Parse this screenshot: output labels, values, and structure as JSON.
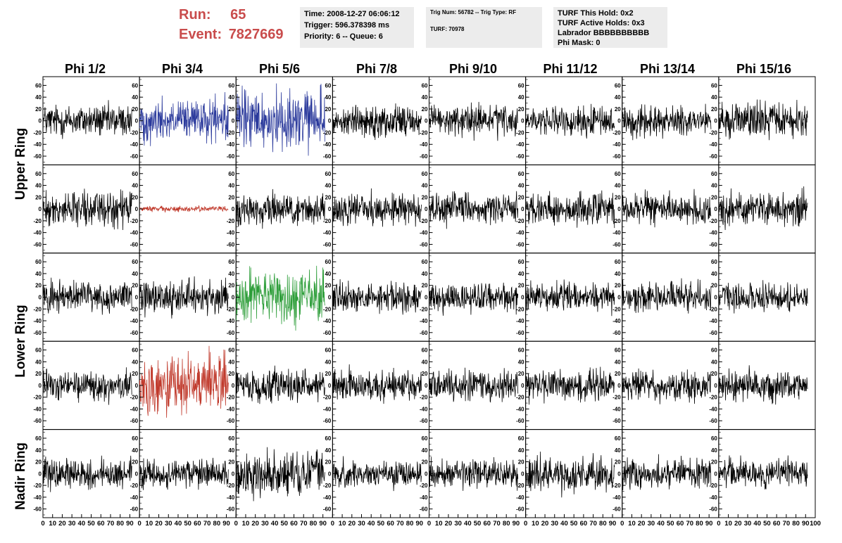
{
  "header": {
    "run_label": "Run:",
    "run_value": "65",
    "event_label": "Event:",
    "event_value": "7827669",
    "accent_color": "#c94c4c"
  },
  "info_boxes": [
    {
      "lines": [
        "Time: 2008-12-27 06:06:12",
        "Trigger: 596.378398 ms",
        "Priority: 6 -- Queue: 6"
      ]
    },
    {
      "lines": [
        "Trig Num: 56782 -- Trig Type: RF",
        "",
        "TURF: 70978"
      ]
    },
    {
      "lines": [
        "TURF This Hold: 0x2",
        "TURF Active Holds: 0x3",
        "Labrador BBBBBBBBBB",
        "Phi Mask: 0"
      ]
    }
  ],
  "column_labels": [
    "Phi 1/2",
    "Phi 3/4",
    "Phi 5/6",
    "Phi 7/8",
    "Phi 9/10",
    "Phi 11/12",
    "Phi 13/14",
    "Phi 15/16"
  ],
  "row_labels": [
    "Upper Ring",
    "Lower Ring",
    "Nadir Ring"
  ],
  "chart_data": {
    "type": "line",
    "rows": 5,
    "columns": 8,
    "ylim": [
      -70,
      70
    ],
    "y_ticks": [
      -60,
      -40,
      -20,
      0,
      20,
      40,
      60
    ],
    "xlim": [
      0,
      100
    ],
    "x_tick_labels": [
      "0",
      "10",
      "20",
      "30",
      "40",
      "50",
      "60",
      "70",
      "80",
      "90",
      "100"
    ],
    "samples_per_trace": 260,
    "default_color": "#000000",
    "panels": [
      {
        "row": 0,
        "col": 0,
        "amplitude": 17,
        "color": "#000000"
      },
      {
        "row": 0,
        "col": 1,
        "amplitude": 22,
        "color": "#2b3a9c"
      },
      {
        "row": 0,
        "col": 2,
        "amplitude": 32,
        "color": "#2b3a9c"
      },
      {
        "row": 0,
        "col": 3,
        "amplitude": 16,
        "color": "#000000"
      },
      {
        "row": 0,
        "col": 4,
        "amplitude": 16,
        "color": "#000000"
      },
      {
        "row": 0,
        "col": 5,
        "amplitude": 15,
        "color": "#000000"
      },
      {
        "row": 0,
        "col": 6,
        "amplitude": 15,
        "color": "#000000"
      },
      {
        "row": 0,
        "col": 7,
        "amplitude": 18,
        "color": "#000000"
      },
      {
        "row": 1,
        "col": 0,
        "amplitude": 18,
        "color": "#000000"
      },
      {
        "row": 1,
        "col": 1,
        "amplitude": 3,
        "color": "#c0392b"
      },
      {
        "row": 1,
        "col": 2,
        "amplitude": 17,
        "color": "#000000"
      },
      {
        "row": 1,
        "col": 3,
        "amplitude": 17,
        "color": "#000000"
      },
      {
        "row": 1,
        "col": 4,
        "amplitude": 16,
        "color": "#000000"
      },
      {
        "row": 1,
        "col": 5,
        "amplitude": 17,
        "color": "#000000"
      },
      {
        "row": 1,
        "col": 6,
        "amplitude": 16,
        "color": "#000000"
      },
      {
        "row": 1,
        "col": 7,
        "amplitude": 18,
        "color": "#000000"
      },
      {
        "row": 2,
        "col": 0,
        "amplitude": 16,
        "color": "#000000"
      },
      {
        "row": 2,
        "col": 1,
        "amplitude": 17,
        "color": "#000000"
      },
      {
        "row": 2,
        "col": 2,
        "amplitude": 28,
        "color": "#2e9e3a"
      },
      {
        "row": 2,
        "col": 3,
        "amplitude": 15,
        "color": "#000000"
      },
      {
        "row": 2,
        "col": 4,
        "amplitude": 15,
        "color": "#000000"
      },
      {
        "row": 2,
        "col": 5,
        "amplitude": 16,
        "color": "#000000"
      },
      {
        "row": 2,
        "col": 6,
        "amplitude": 15,
        "color": "#000000"
      },
      {
        "row": 2,
        "col": 7,
        "amplitude": 15,
        "color": "#000000"
      },
      {
        "row": 3,
        "col": 0,
        "amplitude": 15,
        "color": "#000000"
      },
      {
        "row": 3,
        "col": 1,
        "amplitude": 30,
        "color": "#c0392b"
      },
      {
        "row": 3,
        "col": 2,
        "amplitude": 16,
        "color": "#000000"
      },
      {
        "row": 3,
        "col": 3,
        "amplitude": 16,
        "color": "#000000"
      },
      {
        "row": 3,
        "col": 4,
        "amplitude": 15,
        "color": "#000000"
      },
      {
        "row": 3,
        "col": 5,
        "amplitude": 16,
        "color": "#000000"
      },
      {
        "row": 3,
        "col": 6,
        "amplitude": 15,
        "color": "#000000"
      },
      {
        "row": 3,
        "col": 7,
        "amplitude": 15,
        "color": "#000000"
      },
      {
        "row": 4,
        "col": 0,
        "amplitude": 16,
        "color": "#000000"
      },
      {
        "row": 4,
        "col": 1,
        "amplitude": 15,
        "color": "#000000"
      },
      {
        "row": 4,
        "col": 2,
        "amplitude": 22,
        "color": "#000000"
      },
      {
        "row": 4,
        "col": 3,
        "amplitude": 15,
        "color": "#000000"
      },
      {
        "row": 4,
        "col": 4,
        "amplitude": 14,
        "color": "#000000"
      },
      {
        "row": 4,
        "col": 5,
        "amplitude": 18,
        "color": "#000000"
      },
      {
        "row": 4,
        "col": 6,
        "amplitude": 15,
        "color": "#000000"
      },
      {
        "row": 4,
        "col": 7,
        "amplitude": 15,
        "color": "#000000"
      }
    ]
  }
}
